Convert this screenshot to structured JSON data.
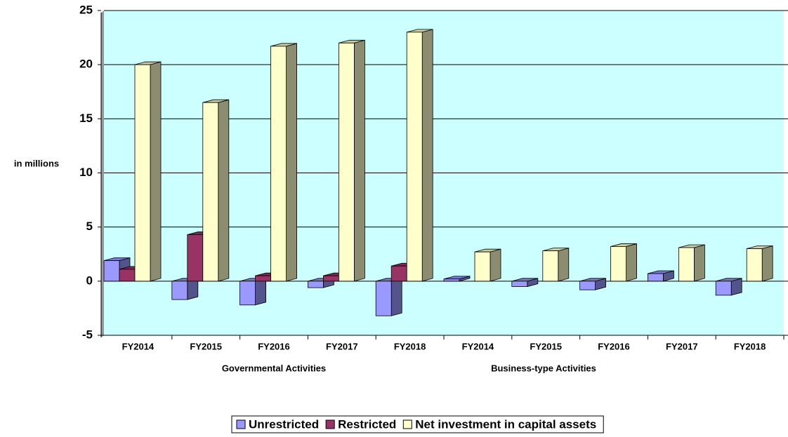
{
  "chart_data": {
    "type": "bar3d",
    "y_label": "in millions",
    "categories": [
      "FY2014",
      "FY2015",
      "FY2016",
      "FY2017",
      "FY2018",
      "FY2014",
      "FY2015",
      "FY2016",
      "FY2017",
      "FY2018"
    ],
    "groups": [
      {
        "label": "Governmental  Activities",
        "from": 0,
        "to": 4
      },
      {
        "label": "Business-type Activities",
        "from": 5,
        "to": 9
      }
    ],
    "series": [
      {
        "name": "Unrestricted",
        "color": "#9999ff",
        "values": [
          1.9,
          -1.7,
          -2.2,
          -0.6,
          -3.2,
          0.2,
          -0.5,
          -0.8,
          0.7,
          -1.3
        ]
      },
      {
        "name": "Restricted",
        "color": "#993366",
        "values": [
          1.1,
          4.3,
          0.5,
          0.5,
          1.4,
          0,
          0,
          0,
          0,
          0
        ]
      },
      {
        "name": "Net investment in capital assets",
        "color": "#ffffcc",
        "values": [
          20.0,
          16.5,
          21.7,
          22.0,
          23.0,
          2.7,
          2.8,
          3.2,
          3.1,
          3.0
        ]
      }
    ],
    "ylim": [
      -5,
      25
    ],
    "yticks": [
      -5,
      0,
      5,
      10,
      15,
      20,
      25
    ],
    "grid": true,
    "legend": "bottom"
  }
}
